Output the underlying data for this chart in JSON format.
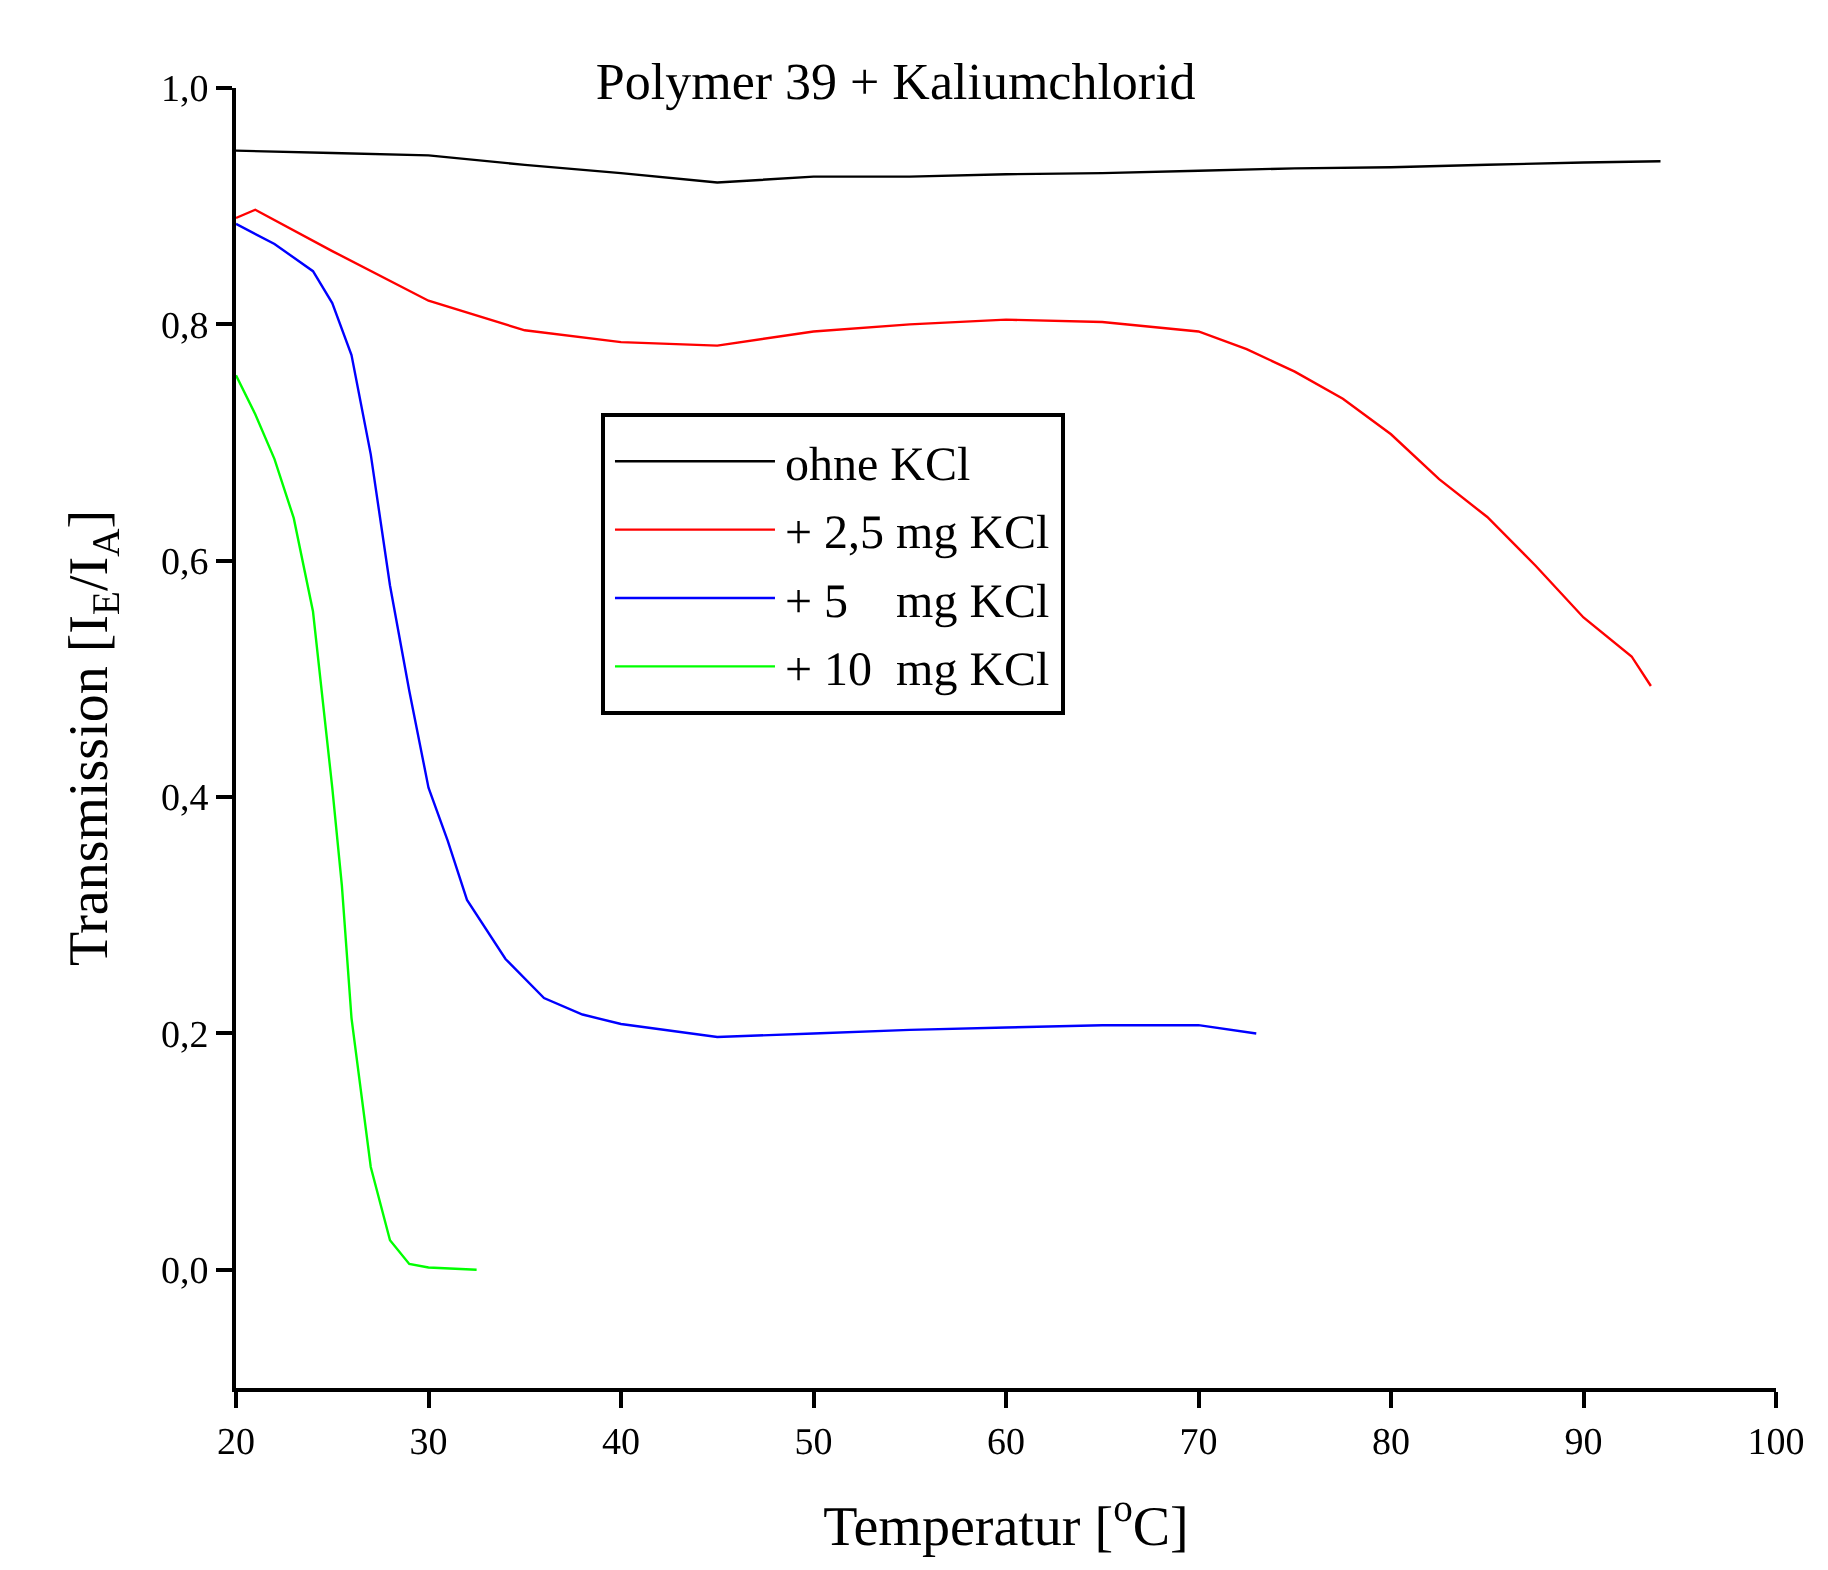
{
  "chart_data": {
    "type": "line",
    "title": "Polymer 39 + Kaliumchlorid",
    "xlabel": "Temperatur [$^{o}$C]",
    "ylabel": "Transmission [I$_{E}$/I$_{A}$]",
    "xlim": [
      20,
      100
    ],
    "xticks": [
      20,
      30,
      40,
      50,
      60,
      70,
      80,
      90,
      100
    ],
    "ylim": [
      -0.1,
      1.0
    ],
    "yticks": [
      {
        "value": 0,
        "label": "0,0"
      },
      {
        "value": 0.2,
        "label": "0,2"
      },
      {
        "value": 0.4,
        "label": "0,4"
      },
      {
        "value": 0.6,
        "label": "0,6"
      },
      {
        "value": 0.8,
        "label": "0,8"
      },
      {
        "value": 1.0,
        "label": "1,0"
      }
    ],
    "legend": "top",
    "marker": "none",
    "line_style": "solid",
    "series": [
      {
        "name": "ohne KCl",
        "color": "#000000",
        "x": [
          20,
          25,
          30,
          35,
          40,
          45,
          50,
          55,
          60,
          65,
          70,
          75,
          80,
          85,
          90,
          94
        ],
        "values": [
          0.947,
          0.945,
          0.943,
          0.935,
          0.928,
          0.92,
          0.925,
          0.925,
          0.927,
          0.928,
          0.93,
          0.932,
          0.933,
          0.935,
          0.937,
          0.938
        ]
      },
      {
        "name": "+ 2,5 mg KCl",
        "color": "#ff0000",
        "x": [
          20,
          21,
          25,
          30,
          35,
          40,
          45,
          50,
          55,
          60,
          65,
          70,
          72.5,
          75,
          77.5,
          80,
          82.5,
          85,
          87.5,
          90,
          92.5,
          93.5
        ],
        "values": [
          0.89,
          0.897,
          0.862,
          0.82,
          0.795,
          0.785,
          0.782,
          0.794,
          0.8,
          0.804,
          0.802,
          0.794,
          0.779,
          0.76,
          0.737,
          0.707,
          0.669,
          0.637,
          0.596,
          0.552,
          0.519,
          0.494
        ]
      },
      {
        "name": "+ 5    mg KCl",
        "color": "#0000ff",
        "x": [
          20,
          22,
          24,
          25,
          26,
          27,
          28,
          29,
          30,
          31,
          32,
          34,
          36,
          38,
          40,
          45,
          50,
          55,
          60,
          65,
          70,
          73
        ],
        "values": [
          0.885,
          0.868,
          0.845,
          0.818,
          0.774,
          0.69,
          0.579,
          0.49,
          0.408,
          0.363,
          0.313,
          0.263,
          0.23,
          0.216,
          0.208,
          0.197,
          0.2,
          0.203,
          0.205,
          0.207,
          0.207,
          0.2
        ]
      },
      {
        "name": "+ 10  mg KCl",
        "color": "#00ff00",
        "x": [
          20,
          21,
          22,
          23,
          24,
          25,
          25.5,
          26,
          27,
          28,
          29,
          30,
          32.5
        ],
        "values": [
          0.757,
          0.724,
          0.686,
          0.636,
          0.557,
          0.408,
          0.325,
          0.213,
          0.087,
          0.025,
          0.005,
          0.002,
          0.0
        ]
      }
    ]
  }
}
